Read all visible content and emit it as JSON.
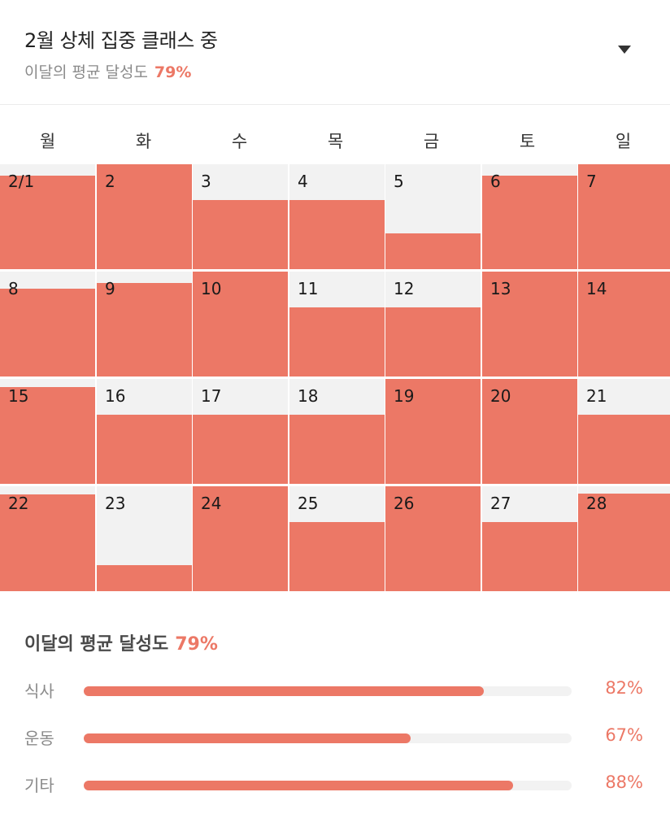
{
  "header": {
    "title": "2월 상체 집중 클래스 중",
    "subtitle_label": "이달의 평균 달성도",
    "subtitle_value": "79%",
    "dropdown_icon": "caret-down-icon"
  },
  "calendar": {
    "weekdays": [
      "월",
      "화",
      "수",
      "목",
      "금",
      "토",
      "일"
    ],
    "days": [
      {
        "label": "2/1",
        "fill": 0.89
      },
      {
        "label": "2",
        "fill": 1.0
      },
      {
        "label": "3",
        "fill": 0.66
      },
      {
        "label": "4",
        "fill": 0.66
      },
      {
        "label": "5",
        "fill": 0.34
      },
      {
        "label": "6",
        "fill": 0.89
      },
      {
        "label": "7",
        "fill": 1.0
      },
      {
        "label": "8",
        "fill": 0.84
      },
      {
        "label": "9",
        "fill": 0.89
      },
      {
        "label": "10",
        "fill": 1.0
      },
      {
        "label": "11",
        "fill": 0.66
      },
      {
        "label": "12",
        "fill": 0.66
      },
      {
        "label": "13",
        "fill": 1.0
      },
      {
        "label": "14",
        "fill": 1.0
      },
      {
        "label": "15",
        "fill": 0.92
      },
      {
        "label": "16",
        "fill": 0.66
      },
      {
        "label": "17",
        "fill": 0.66
      },
      {
        "label": "18",
        "fill": 0.66
      },
      {
        "label": "19",
        "fill": 1.0
      },
      {
        "label": "20",
        "fill": 1.0
      },
      {
        "label": "21",
        "fill": 0.66
      },
      {
        "label": "22",
        "fill": 0.92
      },
      {
        "label": "23",
        "fill": 0.25
      },
      {
        "label": "24",
        "fill": 1.0
      },
      {
        "label": "25",
        "fill": 0.66
      },
      {
        "label": "26",
        "fill": 1.0
      },
      {
        "label": "27",
        "fill": 0.66
      },
      {
        "label": "28",
        "fill": 0.93
      }
    ]
  },
  "summary": {
    "title": "이달의 평균 달성도",
    "value": "79%",
    "items": [
      {
        "label": "식사",
        "value_text": "82%",
        "value": 0.82
      },
      {
        "label": "운동",
        "value_text": "67%",
        "value": 0.67
      },
      {
        "label": "기타",
        "value_text": "88%",
        "value": 0.88
      }
    ]
  },
  "colors": {
    "accent": "#ec7866",
    "empty": "#f2f2f2",
    "muted_text": "#8a8a8a"
  }
}
